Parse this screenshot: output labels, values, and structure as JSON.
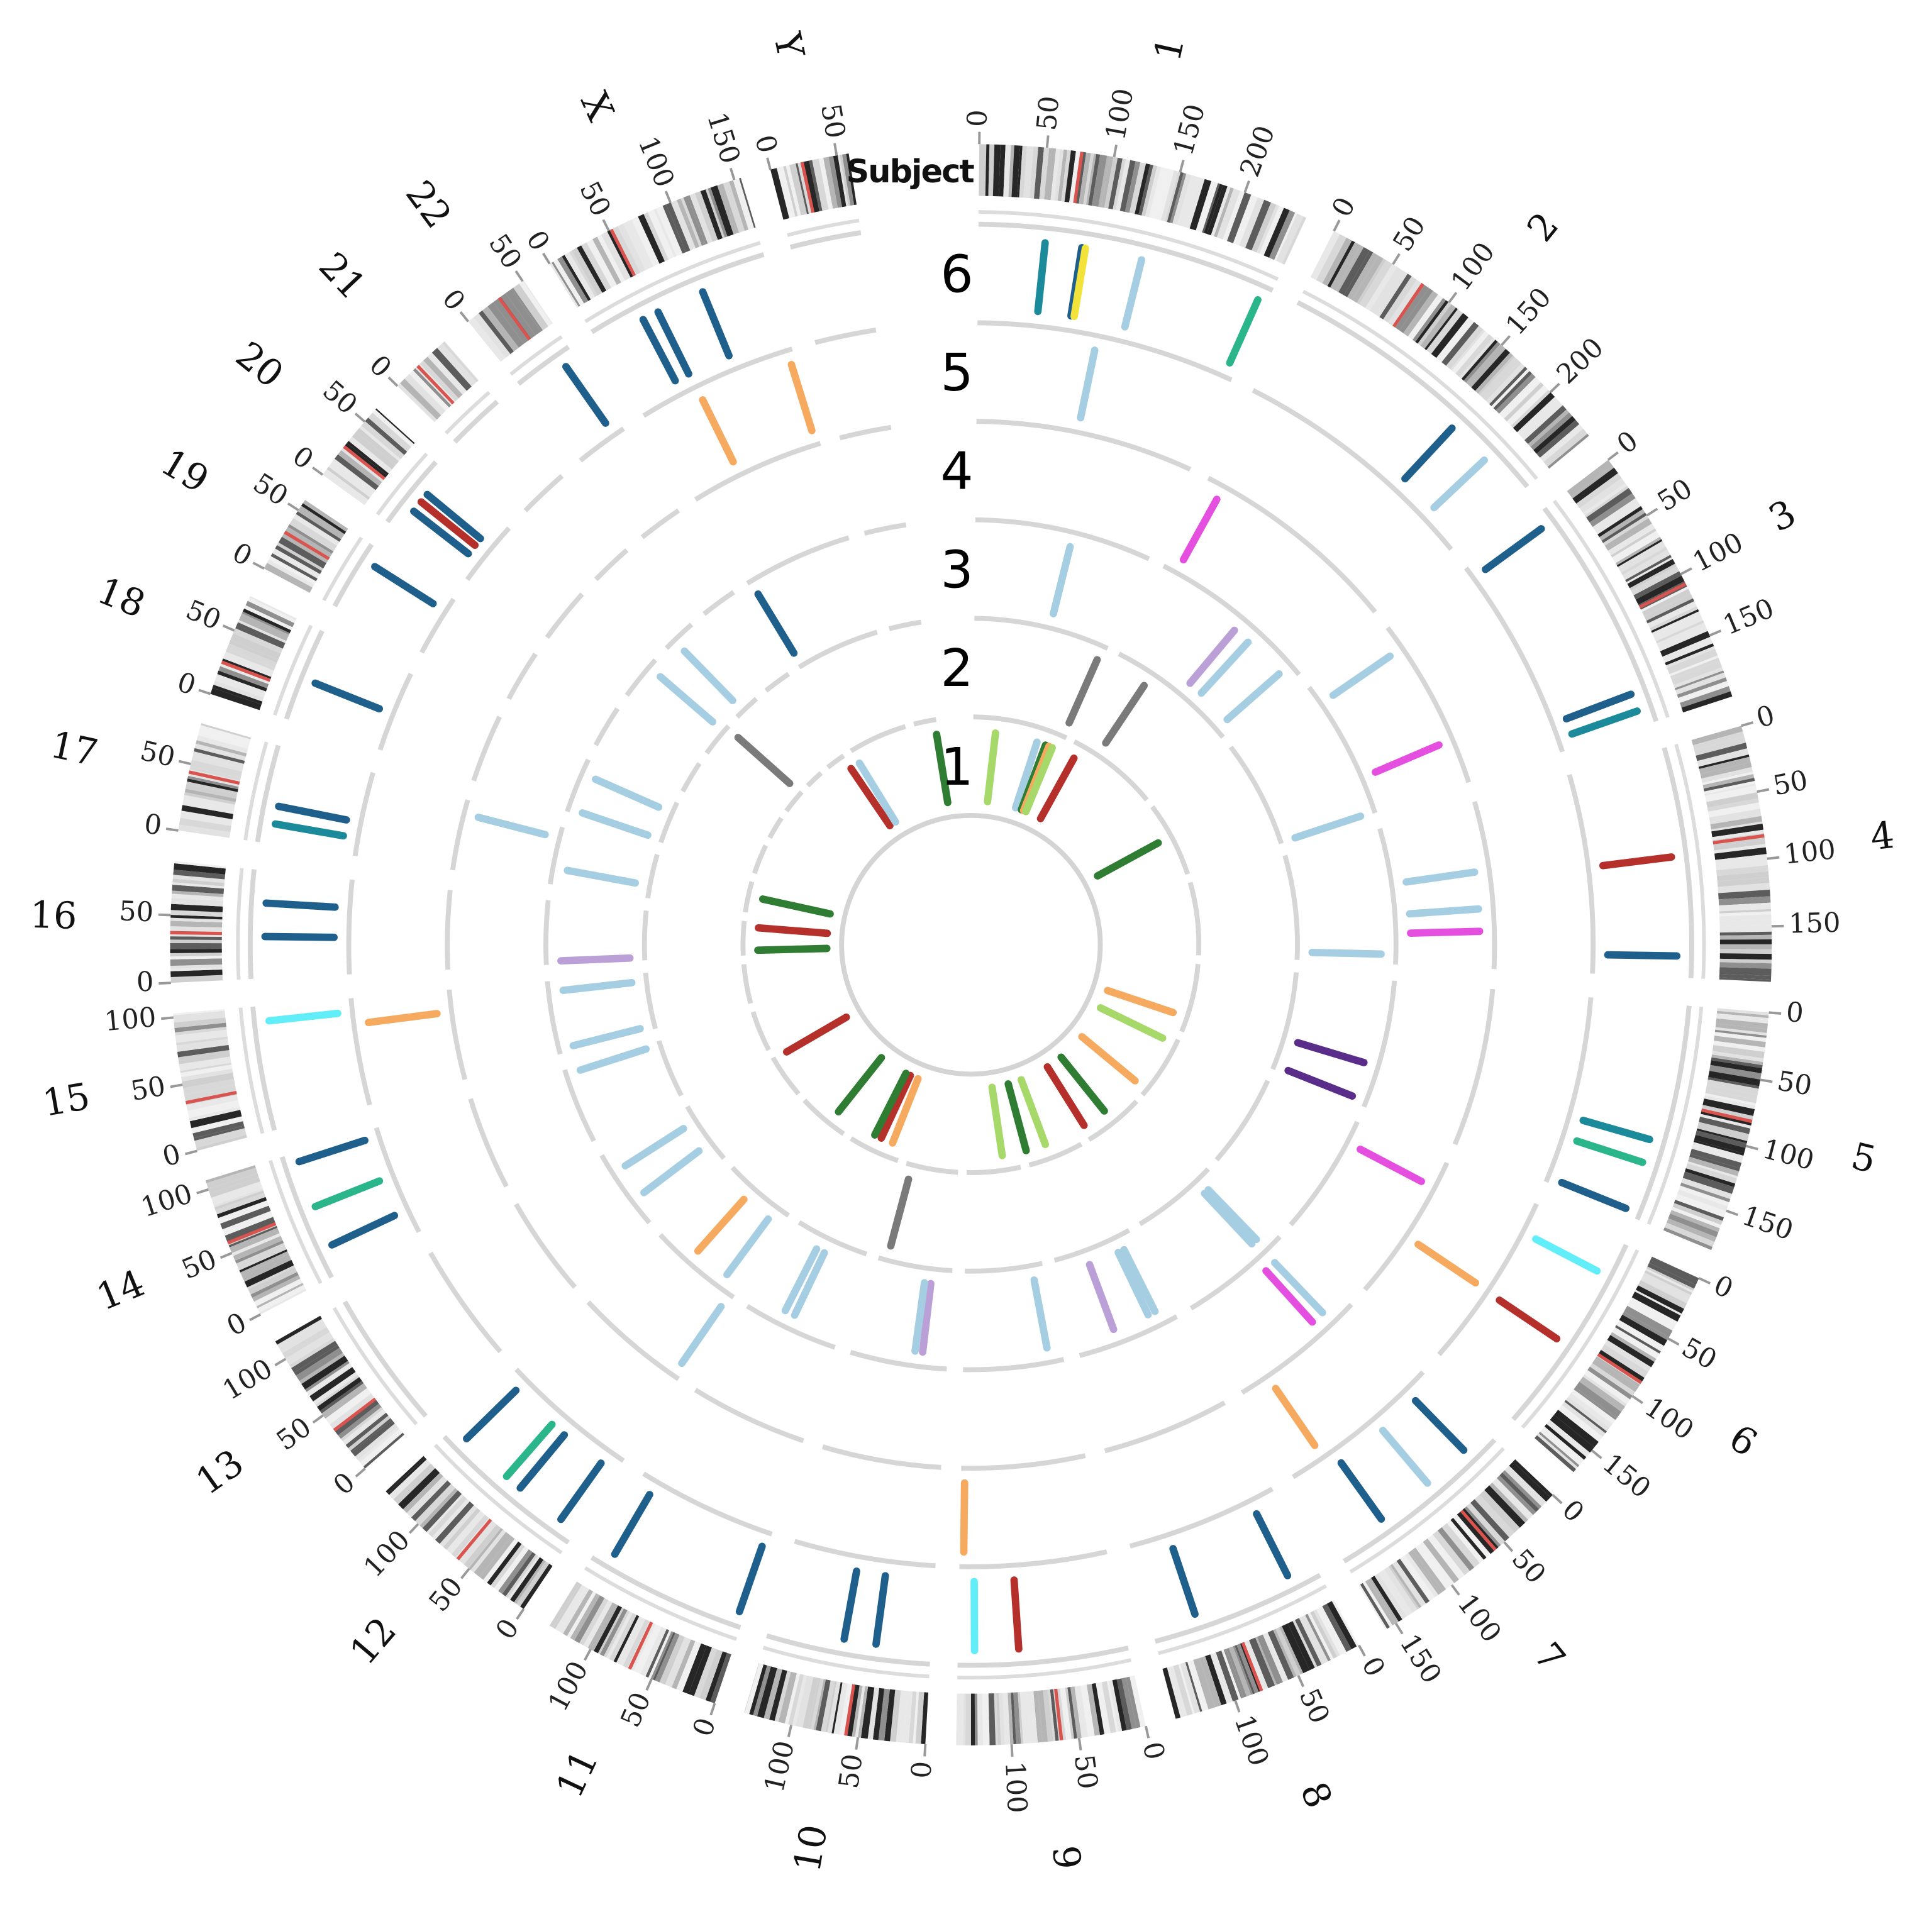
{
  "chart_data": {
    "type": "circos",
    "ideogram_label": "Subject",
    "track_labels": [
      "1",
      "2",
      "3",
      "4",
      "5",
      "6"
    ],
    "tick_interval": 50,
    "chromosomes": [
      {
        "name": "1",
        "length": 249
      },
      {
        "name": "2",
        "length": 243
      },
      {
        "name": "3",
        "length": 198
      },
      {
        "name": "4",
        "length": 191
      },
      {
        "name": "5",
        "length": 181
      },
      {
        "name": "6",
        "length": 171
      },
      {
        "name": "7",
        "length": 159
      },
      {
        "name": "8",
        "length": 146
      },
      {
        "name": "9",
        "length": 141
      },
      {
        "name": "10",
        "length": 136
      },
      {
        "name": "11",
        "length": 135
      },
      {
        "name": "12",
        "length": 134
      },
      {
        "name": "13",
        "length": 115
      },
      {
        "name": "14",
        "length": 107
      },
      {
        "name": "15",
        "length": 103
      },
      {
        "name": "16",
        "length": 90
      },
      {
        "name": "17",
        "length": 81
      },
      {
        "name": "18",
        "length": 78
      },
      {
        "name": "19",
        "length": 59
      },
      {
        "name": "20",
        "length": 63
      },
      {
        "name": "21",
        "length": 48
      },
      {
        "name": "22",
        "length": 51
      },
      {
        "name": "X",
        "length": 155
      },
      {
        "name": "Y",
        "length": 59
      }
    ],
    "colors": {
      "dark_blue": "#1f5f8b",
      "light_blue": "#a6cee3",
      "teal": "#1b8a9a",
      "green_teal": "#2bb58a",
      "cyan": "#62eef8",
      "red": "#b5302a",
      "orange": "#f5aa60",
      "magenta": "#e54fe0",
      "purple": "#bba0d8",
      "dark_purple": "#5b2d8a",
      "dark_green": "#2e7d32",
      "light_green": "#a6d96a",
      "grey": "#7a7a7a",
      "yellow": "#f2e23a"
    },
    "marks": [
      {
        "track": 6,
        "chr": "1",
        "pos": 56,
        "color": "teal"
      },
      {
        "track": 6,
        "chr": "1",
        "pos": 87,
        "color": "dark_blue"
      },
      {
        "track": 6,
        "chr": "1",
        "pos": 90,
        "color": "yellow"
      },
      {
        "track": 6,
        "chr": "1",
        "pos": 138,
        "color": "light_blue"
      },
      {
        "track": 6,
        "chr": "1",
        "pos": 241,
        "color": "green_teal"
      },
      {
        "track": 6,
        "chr": "2",
        "pos": 165,
        "color": "dark_blue"
      },
      {
        "track": 6,
        "chr": "2",
        "pos": 203,
        "color": "light_blue"
      },
      {
        "track": 6,
        "chr": "3",
        "pos": 12,
        "color": "dark_blue"
      },
      {
        "track": 6,
        "chr": "3",
        "pos": 170,
        "color": "dark_blue"
      },
      {
        "track": 6,
        "chr": "3",
        "pos": 185,
        "color": "teal"
      },
      {
        "track": 6,
        "chr": "4",
        "pos": 90,
        "color": "red"
      },
      {
        "track": 6,
        "chr": "4",
        "pos": 173,
        "color": "dark_blue"
      },
      {
        "track": 6,
        "chr": "5",
        "pos": 115,
        "color": "teal"
      },
      {
        "track": 6,
        "chr": "5",
        "pos": 135,
        "color": "green_teal"
      },
      {
        "track": 6,
        "chr": "5",
        "pos": 176,
        "color": "dark_blue"
      },
      {
        "track": 6,
        "chr": "6",
        "pos": 30,
        "color": "cyan"
      },
      {
        "track": 6,
        "chr": "6",
        "pos": 96,
        "color": "red"
      },
      {
        "track": 6,
        "chr": "7",
        "pos": 24,
        "color": "dark_blue"
      },
      {
        "track": 6,
        "chr": "7",
        "pos": 65,
        "color": "light_blue"
      },
      {
        "track": 6,
        "chr": "7",
        "pos": 114,
        "color": "dark_blue"
      },
      {
        "track": 6,
        "chr": "8",
        "pos": 24,
        "color": "dark_blue"
      },
      {
        "track": 6,
        "chr": "8",
        "pos": 108,
        "color": "dark_blue"
      },
      {
        "track": 6,
        "chr": "9",
        "pos": 90,
        "color": "red"
      },
      {
        "track": 6,
        "chr": "9",
        "pos": 127,
        "color": "cyan"
      },
      {
        "track": 6,
        "chr": "10",
        "pos": 46,
        "color": "dark_blue"
      },
      {
        "track": 6,
        "chr": "10",
        "pos": 73,
        "color": "dark_blue"
      },
      {
        "track": 6,
        "chr": "11",
        "pos": 5,
        "color": "dark_blue"
      },
      {
        "track": 6,
        "chr": "11",
        "pos": 120,
        "color": "dark_blue"
      },
      {
        "track": 6,
        "chr": "12",
        "pos": 16,
        "color": "dark_blue"
      },
      {
        "track": 6,
        "chr": "12",
        "pos": 59,
        "color": "dark_blue"
      },
      {
        "track": 6,
        "chr": "12",
        "pos": 74,
        "color": "green_teal"
      },
      {
        "track": 6,
        "chr": "12",
        "pos": 120,
        "color": "dark_blue"
      },
      {
        "track": 6,
        "chr": "14",
        "pos": 24,
        "color": "dark_blue"
      },
      {
        "track": 6,
        "chr": "14",
        "pos": 59,
        "color": "green_teal"
      },
      {
        "track": 6,
        "chr": "14",
        "pos": 99,
        "color": "dark_blue"
      },
      {
        "track": 6,
        "chr": "15",
        "pos": 90,
        "color": "cyan"
      },
      {
        "track": 6,
        "chr": "16",
        "pos": 35,
        "color": "dark_blue"
      },
      {
        "track": 6,
        "chr": "16",
        "pos": 63,
        "color": "dark_blue"
      },
      {
        "track": 6,
        "chr": "17",
        "pos": 17,
        "color": "teal"
      },
      {
        "track": 6,
        "chr": "17",
        "pos": 32,
        "color": "dark_blue"
      },
      {
        "track": 6,
        "chr": "18",
        "pos": 36,
        "color": "dark_blue"
      },
      {
        "track": 6,
        "chr": "19",
        "pos": 45,
        "color": "dark_blue"
      },
      {
        "track": 6,
        "chr": "20",
        "pos": 20,
        "color": "dark_blue"
      },
      {
        "track": 6,
        "chr": "20",
        "pos": 30,
        "color": "red"
      },
      {
        "track": 6,
        "chr": "20",
        "pos": 38,
        "color": "dark_blue"
      },
      {
        "track": 6,
        "chr": "22",
        "pos": 40,
        "color": "dark_blue"
      },
      {
        "track": 6,
        "chr": "X",
        "pos": 42,
        "color": "dark_blue"
      },
      {
        "track": 6,
        "chr": "X",
        "pos": 56,
        "color": "dark_blue"
      },
      {
        "track": 6,
        "chr": "X",
        "pos": 97,
        "color": "dark_blue"
      },
      {
        "track": 5,
        "chr": "X",
        "pos": 57,
        "color": "orange"
      },
      {
        "track": 5,
        "chr": "X",
        "pos": 150,
        "color": "orange"
      },
      {
        "track": 5,
        "chr": "1",
        "pos": 115,
        "color": "light_blue"
      },
      {
        "track": 5,
        "chr": "6",
        "pos": 95,
        "color": "orange"
      },
      {
        "track": 5,
        "chr": "7",
        "pos": 125,
        "color": "orange"
      },
      {
        "track": 5,
        "chr": "9",
        "pos": 137,
        "color": "orange"
      },
      {
        "track": 5,
        "chr": "15",
        "pos": 78,
        "color": "orange"
      },
      {
        "track": 4,
        "chr": "2",
        "pos": 20,
        "color": "magenta"
      },
      {
        "track": 4,
        "chr": "3",
        "pos": 28,
        "color": "light_blue"
      },
      {
        "track": 4,
        "chr": "3",
        "pos": 146,
        "color": "magenta"
      },
      {
        "track": 4,
        "chr": "4",
        "pos": 79,
        "color": "light_blue"
      },
      {
        "track": 4,
        "chr": "4",
        "pos": 122,
        "color": "light_blue"
      },
      {
        "track": 4,
        "chr": "4",
        "pos": 148,
        "color": "magenta"
      },
      {
        "track": 4,
        "chr": "6",
        "pos": 32,
        "color": "magenta"
      },
      {
        "track": 4,
        "chr": "7",
        "pos": 30,
        "color": "light_blue"
      },
      {
        "track": 4,
        "chr": "7",
        "pos": 46,
        "color": "magenta"
      },
      {
        "track": 4,
        "chr": "12",
        "pos": 7,
        "color": "light_blue"
      },
      {
        "track": 4,
        "chr": "17",
        "pos": 65,
        "color": "light_blue"
      },
      {
        "track": 3,
        "chr": "1",
        "pos": 138,
        "color": "light_blue"
      },
      {
        "track": 3,
        "chr": "2",
        "pos": 134,
        "color": "purple"
      },
      {
        "track": 3,
        "chr": "2",
        "pos": 160,
        "color": "light_blue"
      },
      {
        "track": 3,
        "chr": "2",
        "pos": 224,
        "color": "light_blue"
      },
      {
        "track": 3,
        "chr": "3",
        "pos": 196,
        "color": "light_blue"
      },
      {
        "track": 3,
        "chr": "4",
        "pos": 177,
        "color": "light_blue"
      },
      {
        "track": 3,
        "chr": "5",
        "pos": 122,
        "color": "dark_purple"
      },
      {
        "track": 3,
        "chr": "5",
        "pos": 173,
        "color": "dark_purple"
      },
      {
        "track": 3,
        "chr": "7",
        "pos": 26,
        "color": "light_blue"
      },
      {
        "track": 3,
        "chr": "7",
        "pos": 35,
        "color": "light_blue"
      },
      {
        "track": 3,
        "chr": "8",
        "pos": 24,
        "color": "light_blue"
      },
      {
        "track": 3,
        "chr": "8",
        "pos": 35,
        "color": "light_blue"
      },
      {
        "track": 3,
        "chr": "8",
        "pos": 89,
        "color": "purple"
      },
      {
        "track": 3,
        "chr": "9",
        "pos": 20,
        "color": "light_blue"
      },
      {
        "track": 3,
        "chr": "10",
        "pos": 36,
        "color": "purple"
      },
      {
        "track": 3,
        "chr": "10",
        "pos": 47,
        "color": "light_blue"
      },
      {
        "track": 3,
        "chr": "11",
        "pos": 70,
        "color": "light_blue"
      },
      {
        "track": 3,
        "chr": "11",
        "pos": 85,
        "color": "light_blue"
      },
      {
        "track": 3,
        "chr": "12",
        "pos": 26,
        "color": "light_blue"
      },
      {
        "track": 3,
        "chr": "12",
        "pos": 80,
        "color": "orange"
      },
      {
        "track": 3,
        "chr": "13",
        "pos": 38,
        "color": "light_blue"
      },
      {
        "track": 3,
        "chr": "13",
        "pos": 85,
        "color": "light_blue"
      },
      {
        "track": 3,
        "chr": "14",
        "pos": 100,
        "color": "light_blue"
      },
      {
        "track": 3,
        "chr": "15",
        "pos": 7,
        "color": "light_blue"
      },
      {
        "track": 3,
        "chr": "15",
        "pos": 88,
        "color": "light_blue"
      },
      {
        "track": 3,
        "chr": "16",
        "pos": 5,
        "color": "purple"
      },
      {
        "track": 3,
        "chr": "17",
        "pos": 23,
        "color": "light_blue"
      },
      {
        "track": 3,
        "chr": "18",
        "pos": 5,
        "color": "light_blue"
      },
      {
        "track": 3,
        "chr": "18",
        "pos": 57,
        "color": "light_blue"
      },
      {
        "track": 3,
        "chr": "20",
        "pos": 50,
        "color": "light_blue"
      },
      {
        "track": 3,
        "chr": "21",
        "pos": 15,
        "color": "light_blue"
      },
      {
        "track": 3,
        "chr": "X",
        "pos": 5,
        "color": "dark_blue"
      },
      {
        "track": 2,
        "chr": "1",
        "pos": 240,
        "color": "grey"
      },
      {
        "track": 2,
        "chr": "2",
        "pos": 70,
        "color": "grey"
      },
      {
        "track": 2,
        "chr": "10",
        "pos": 120,
        "color": "grey"
      },
      {
        "track": 2,
        "chr": "20",
        "pos": 59,
        "color": "grey"
      },
      {
        "track": 1,
        "chr": "1",
        "pos": 62,
        "color": "light_green"
      },
      {
        "track": 1,
        "chr": "1",
        "pos": 180,
        "color": "light_blue"
      },
      {
        "track": 1,
        "chr": "1",
        "pos": 205,
        "color": "dark_green"
      },
      {
        "track": 1,
        "chr": "1",
        "pos": 215,
        "color": "orange"
      },
      {
        "track": 1,
        "chr": "1",
        "pos": 225,
        "color": "light_green"
      },
      {
        "track": 1,
        "chr": "2",
        "pos": 20,
        "color": "red"
      },
      {
        "track": 1,
        "chr": "3",
        "pos": 90,
        "color": "dark_green"
      },
      {
        "track": 1,
        "chr": "5",
        "pos": 141,
        "color": "orange"
      },
      {
        "track": 1,
        "chr": "6",
        "pos": 14,
        "color": "light_green"
      },
      {
        "track": 1,
        "chr": "6",
        "pos": 155,
        "color": "orange"
      },
      {
        "track": 1,
        "chr": "7",
        "pos": 81,
        "color": "dark_green"
      },
      {
        "track": 1,
        "chr": "7",
        "pos": 150,
        "color": "red"
      },
      {
        "track": 1,
        "chr": "8",
        "pos": 88,
        "color": "light_green"
      },
      {
        "track": 1,
        "chr": "8",
        "pos": 144,
        "color": "dark_green"
      },
      {
        "track": 1,
        "chr": "9",
        "pos": 43,
        "color": "light_green"
      },
      {
        "track": 1,
        "chr": "11",
        "pos": 30,
        "color": "orange"
      },
      {
        "track": 1,
        "chr": "11",
        "pos": 64,
        "color": "red"
      },
      {
        "track": 1,
        "chr": "11",
        "pos": 84,
        "color": "dark_green"
      },
      {
        "track": 1,
        "chr": "12",
        "pos": 46,
        "color": "dark_green"
      },
      {
        "track": 1,
        "chr": "13",
        "pos": 110,
        "color": "red"
      },
      {
        "track": 1,
        "chr": "16",
        "pos": 13,
        "color": "dark_green"
      },
      {
        "track": 1,
        "chr": "16",
        "pos": 75,
        "color": "red"
      },
      {
        "track": 1,
        "chr": "17",
        "pos": 43,
        "color": "dark_green"
      },
      {
        "track": 1,
        "chr": "22",
        "pos": 48,
        "color": "red"
      },
      {
        "track": 1,
        "chr": "X",
        "pos": 2,
        "color": "light_blue"
      },
      {
        "track": 1,
        "chr": "Y",
        "pos": 54,
        "color": "dark_green"
      }
    ]
  }
}
